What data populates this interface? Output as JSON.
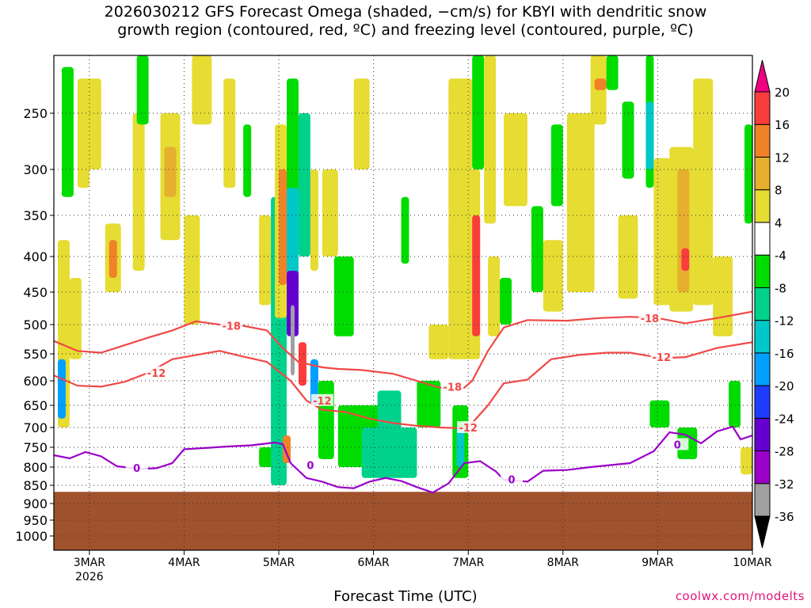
{
  "chart_data": {
    "type": "heatmap",
    "title_line1": "2026030212 GFS Forecast Omega (shaded, −cm/s) for KBYI with dendritic snow",
    "title_line2": "growth region (contoured, red, ºC) and freezing level (contoured, purple, ºC)",
    "xlabel": "Forecast Time (UTC)",
    "ylabel": "",
    "credit": "coolwx.com/modelts",
    "x_ticks": [
      {
        "label": "3MAR",
        "sub": "2026",
        "t": 21
      },
      {
        "label": "4MAR",
        "sub": "",
        "t": 45
      },
      {
        "label": "5MAR",
        "sub": "",
        "t": 69
      },
      {
        "label": "6MAR",
        "sub": "",
        "t": 93
      },
      {
        "label": "7MAR",
        "sub": "",
        "t": 117
      },
      {
        "label": "8MAR",
        "sub": "",
        "t": 141
      },
      {
        "label": "9MAR",
        "sub": "",
        "t": 165
      },
      {
        "label": "10MAR",
        "sub": "",
        "t": 189
      }
    ],
    "xlim": [
      12,
      189
    ],
    "y_ticks": [
      250,
      300,
      350,
      400,
      450,
      500,
      550,
      600,
      650,
      700,
      750,
      800,
      850,
      900,
      950,
      1000
    ],
    "ylim": [
      200,
      1010
    ],
    "ground_pressure": 868,
    "colorbar": {
      "levels": [
        -36,
        -32,
        -28,
        -24,
        -20,
        -16,
        -12,
        -8,
        -4,
        4,
        8,
        12,
        16,
        20
      ],
      "colors": [
        "#000000",
        "#a0a0a0",
        "#9a00c8",
        "#6400d2",
        "#1e3cff",
        "#00a0ff",
        "#00c8c8",
        "#00d28c",
        "#00dc00",
        "#ffffff",
        "#e6dc32",
        "#e6af2d",
        "#f08228",
        "#fa3c3c",
        "#f00082"
      ]
    },
    "shaded_cells": [
      {
        "t0": 13,
        "t1": 16,
        "p0": 380,
        "p1": 700,
        "v": 6
      },
      {
        "t0": 13,
        "t1": 15,
        "p0": 560,
        "p1": 680,
        "v": -20
      },
      {
        "t0": 14,
        "t1": 17,
        "p0": 210,
        "p1": 330,
        "v": -6
      },
      {
        "t0": 16,
        "t1": 19,
        "p0": 430,
        "p1": 560,
        "v": 6
      },
      {
        "t0": 18,
        "t1": 21,
        "p0": 220,
        "p1": 320,
        "v": 6
      },
      {
        "t0": 20,
        "t1": 24,
        "p0": 220,
        "p1": 300,
        "v": 5
      },
      {
        "t0": 25,
        "t1": 29,
        "p0": 360,
        "p1": 450,
        "v": 6
      },
      {
        "t0": 26,
        "t1": 28,
        "p0": 380,
        "p1": 430,
        "v": 14
      },
      {
        "t0": 32,
        "t1": 35,
        "p0": 250,
        "p1": 420,
        "v": 6
      },
      {
        "t0": 33,
        "t1": 36,
        "p0": 200,
        "p1": 260,
        "v": -6
      },
      {
        "t0": 39,
        "t1": 44,
        "p0": 250,
        "p1": 380,
        "v": 6
      },
      {
        "t0": 40,
        "t1": 43,
        "p0": 280,
        "p1": 330,
        "v": 10
      },
      {
        "t0": 45,
        "t1": 49,
        "p0": 350,
        "p1": 500,
        "v": 5
      },
      {
        "t0": 47,
        "t1": 52,
        "p0": 200,
        "p1": 260,
        "v": 5
      },
      {
        "t0": 55,
        "t1": 58,
        "p0": 220,
        "p1": 320,
        "v": 5
      },
      {
        "t0": 60,
        "t1": 62,
        "p0": 260,
        "p1": 330,
        "v": -6
      },
      {
        "t0": 64,
        "t1": 69,
        "p0": 750,
        "p1": 800,
        "v": -6
      },
      {
        "t0": 64,
        "t1": 67,
        "p0": 350,
        "p1": 470,
        "v": 5
      },
      {
        "t0": 67,
        "t1": 71,
        "p0": 330,
        "p1": 850,
        "v": -10
      },
      {
        "t0": 68,
        "t1": 71,
        "p0": 260,
        "p1": 490,
        "v": 6
      },
      {
        "t0": 69,
        "t1": 71,
        "p0": 300,
        "p1": 440,
        "v": 14
      },
      {
        "t0": 70,
        "t1": 72,
        "p0": 720,
        "p1": 790,
        "v": 14
      },
      {
        "t0": 71,
        "t1": 74,
        "p0": 220,
        "p1": 330,
        "v": -6
      },
      {
        "t0": 71,
        "t1": 74,
        "p0": 320,
        "p1": 450,
        "v": -14
      },
      {
        "t0": 71,
        "t1": 74,
        "p0": 420,
        "p1": 520,
        "v": -26
      },
      {
        "t0": 72,
        "t1": 73,
        "p0": 470,
        "p1": 590,
        "v": -34
      },
      {
        "t0": 74,
        "t1": 77,
        "p0": 250,
        "p1": 400,
        "v": -10
      },
      {
        "t0": 74,
        "t1": 76,
        "p0": 530,
        "p1": 610,
        "v": 18
      },
      {
        "t0": 77,
        "t1": 79,
        "p0": 300,
        "p1": 420,
        "v": 6
      },
      {
        "t0": 77,
        "t1": 79,
        "p0": 560,
        "p1": 650,
        "v": -20
      },
      {
        "t0": 80,
        "t1": 84,
        "p0": 300,
        "p1": 400,
        "v": 5
      },
      {
        "t0": 79,
        "t1": 83,
        "p0": 600,
        "p1": 780,
        "v": -6
      },
      {
        "t0": 83,
        "t1": 88,
        "p0": 400,
        "p1": 520,
        "v": -6
      },
      {
        "t0": 88,
        "t1": 92,
        "p0": 220,
        "p1": 300,
        "v": 5
      },
      {
        "t0": 84,
        "t1": 99,
        "p0": 650,
        "p1": 800,
        "v": -6
      },
      {
        "t0": 90,
        "t1": 104,
        "p0": 700,
        "p1": 830,
        "v": -10
      },
      {
        "t0": 94,
        "t1": 100,
        "p0": 620,
        "p1": 720,
        "v": -10
      },
      {
        "t0": 100,
        "t1": 102,
        "p0": 330,
        "p1": 410,
        "v": -6
      },
      {
        "t0": 104,
        "t1": 110,
        "p0": 600,
        "p1": 700,
        "v": -6
      },
      {
        "t0": 107,
        "t1": 112,
        "p0": 500,
        "p1": 560,
        "v": 5
      },
      {
        "t0": 112,
        "t1": 118,
        "p0": 220,
        "p1": 560,
        "v": 5
      },
      {
        "t0": 113,
        "t1": 117,
        "p0": 650,
        "p1": 830,
        "v": -6
      },
      {
        "t0": 114,
        "t1": 116,
        "p0": 700,
        "p1": 800,
        "v": -14
      },
      {
        "t0": 117,
        "t1": 120,
        "p0": 300,
        "p1": 560,
        "v": 6
      },
      {
        "t0": 118,
        "t1": 120,
        "p0": 350,
        "p1": 520,
        "v": 18
      },
      {
        "t0": 118,
        "t1": 121,
        "p0": 200,
        "p1": 300,
        "v": -6
      },
      {
        "t0": 121,
        "t1": 124,
        "p0": 200,
        "p1": 360,
        "v": 5
      },
      {
        "t0": 122,
        "t1": 125,
        "p0": 400,
        "p1": 520,
        "v": 5
      },
      {
        "t0": 125,
        "t1": 128,
        "p0": 430,
        "p1": 500,
        "v": -6
      },
      {
        "t0": 126,
        "t1": 132,
        "p0": 250,
        "p1": 340,
        "v": 5
      },
      {
        "t0": 133,
        "t1": 136,
        "p0": 340,
        "p1": 450,
        "v": -6
      },
      {
        "t0": 136,
        "t1": 141,
        "p0": 380,
        "p1": 480,
        "v": 5
      },
      {
        "t0": 138,
        "t1": 141,
        "p0": 260,
        "p1": 340,
        "v": -6
      },
      {
        "t0": 142,
        "t1": 149,
        "p0": 250,
        "p1": 450,
        "v": 5
      },
      {
        "t0": 148,
        "t1": 152,
        "p0": 200,
        "p1": 260,
        "v": 6
      },
      {
        "t0": 149,
        "t1": 152,
        "p0": 220,
        "p1": 230,
        "v": 14
      },
      {
        "t0": 152,
        "t1": 155,
        "p0": 200,
        "p1": 230,
        "v": -6
      },
      {
        "t0": 155,
        "t1": 160,
        "p0": 350,
        "p1": 460,
        "v": 5
      },
      {
        "t0": 156,
        "t1": 159,
        "p0": 240,
        "p1": 310,
        "v": -6
      },
      {
        "t0": 162,
        "t1": 164,
        "p0": 200,
        "p1": 320,
        "v": -6
      },
      {
        "t0": 162,
        "t1": 164,
        "p0": 240,
        "p1": 300,
        "v": -14
      },
      {
        "t0": 163,
        "t1": 168,
        "p0": 640,
        "p1": 700,
        "v": -6
      },
      {
        "t0": 164,
        "t1": 169,
        "p0": 290,
        "p1": 470,
        "v": 5
      },
      {
        "t0": 168,
        "t1": 174,
        "p0": 280,
        "p1": 480,
        "v": 6
      },
      {
        "t0": 170,
        "t1": 173,
        "p0": 300,
        "p1": 450,
        "v": 10
      },
      {
        "t0": 171,
        "t1": 173,
        "p0": 390,
        "p1": 420,
        "v": 18
      },
      {
        "t0": 170,
        "t1": 175,
        "p0": 700,
        "p1": 780,
        "v": -6
      },
      {
        "t0": 174,
        "t1": 179,
        "p0": 220,
        "p1": 470,
        "v": 5
      },
      {
        "t0": 179,
        "t1": 184,
        "p0": 400,
        "p1": 520,
        "v": 5
      },
      {
        "t0": 183,
        "t1": 186,
        "p0": 600,
        "p1": 700,
        "v": -6
      },
      {
        "t0": 187,
        "t1": 189,
        "p0": 260,
        "p1": 360,
        "v": -6
      },
      {
        "t0": 186,
        "t1": 189,
        "p0": 750,
        "p1": 820,
        "v": 5
      }
    ],
    "contour_minus18": {
      "label": "-18",
      "points": [
        [
          12,
          528
        ],
        [
          18,
          545
        ],
        [
          24,
          548
        ],
        [
          30,
          535
        ],
        [
          36,
          522
        ],
        [
          42,
          510
        ],
        [
          48,
          495
        ],
        [
          54,
          500
        ],
        [
          60,
          502
        ],
        [
          66,
          510
        ],
        [
          70,
          540
        ],
        [
          74,
          565
        ],
        [
          80,
          575
        ],
        [
          84,
          578
        ],
        [
          90,
          580
        ],
        [
          98,
          587
        ],
        [
          104,
          600
        ],
        [
          108,
          610
        ],
        [
          113,
          620
        ],
        [
          116,
          614
        ],
        [
          118,
          600
        ],
        [
          122,
          545
        ],
        [
          126,
          505
        ],
        [
          132,
          493
        ],
        [
          142,
          494
        ],
        [
          150,
          490
        ],
        [
          158,
          488
        ],
        [
          165,
          490
        ],
        [
          172,
          498
        ],
        [
          180,
          490
        ],
        [
          189,
          480
        ]
      ],
      "labels_at": [
        [
          57,
          502
        ],
        [
          113,
          612
        ],
        [
          163,
          490
        ]
      ]
    },
    "contour_minus12": {
      "label": "-12",
      "points": [
        [
          12,
          590
        ],
        [
          18,
          610
        ],
        [
          24,
          612
        ],
        [
          30,
          602
        ],
        [
          36,
          585
        ],
        [
          42,
          560
        ],
        [
          48,
          552
        ],
        [
          54,
          545
        ],
        [
          60,
          555
        ],
        [
          66,
          565
        ],
        [
          72,
          600
        ],
        [
          76,
          640
        ],
        [
          80,
          660
        ],
        [
          86,
          665
        ],
        [
          92,
          680
        ],
        [
          98,
          690
        ],
        [
          104,
          696
        ],
        [
          110,
          700
        ],
        [
          116,
          702
        ],
        [
          118,
          690
        ],
        [
          122,
          650
        ],
        [
          126,
          605
        ],
        [
          132,
          598
        ],
        [
          138,
          560
        ],
        [
          145,
          552
        ],
        [
          152,
          548
        ],
        [
          158,
          548
        ],
        [
          166,
          558
        ],
        [
          172,
          556
        ],
        [
          180,
          540
        ],
        [
          189,
          530
        ]
      ],
      "labels_at": [
        [
          38,
          585
        ],
        [
          80,
          640
        ],
        [
          117,
          700
        ],
        [
          166,
          556
        ]
      ]
    },
    "contour_0": {
      "label": "0",
      "points": [
        [
          12,
          770
        ],
        [
          16,
          778
        ],
        [
          20,
          762
        ],
        [
          24,
          773
        ],
        [
          28,
          798
        ],
        [
          34,
          805
        ],
        [
          38,
          803
        ],
        [
          42,
          790
        ],
        [
          45,
          755
        ],
        [
          50,
          752
        ],
        [
          56,
          748
        ],
        [
          62,
          745
        ],
        [
          68,
          738
        ],
        [
          70,
          742
        ],
        [
          72,
          790
        ],
        [
          76,
          830
        ],
        [
          80,
          840
        ],
        [
          84,
          855
        ],
        [
          88,
          858
        ],
        [
          92,
          840
        ],
        [
          96,
          830
        ],
        [
          100,
          838
        ],
        [
          104,
          855
        ],
        [
          108,
          870
        ],
        [
          112,
          845
        ],
        [
          116,
          790
        ],
        [
          120,
          785
        ],
        [
          124,
          812
        ],
        [
          126,
          835
        ],
        [
          132,
          840
        ],
        [
          136,
          810
        ],
        [
          142,
          808
        ],
        [
          148,
          800
        ],
        [
          152,
          796
        ],
        [
          158,
          790
        ],
        [
          164,
          760
        ],
        [
          168,
          712
        ],
        [
          172,
          718
        ],
        [
          176,
          740
        ],
        [
          180,
          710
        ],
        [
          184,
          698
        ],
        [
          186,
          730
        ],
        [
          189,
          720
        ]
      ],
      "labels_at": [
        [
          33,
          802
        ],
        [
          77,
          795
        ],
        [
          128,
          834
        ],
        [
          170,
          743
        ]
      ]
    },
    "contour_labels": [
      "-18",
      "-12",
      "0"
    ]
  }
}
